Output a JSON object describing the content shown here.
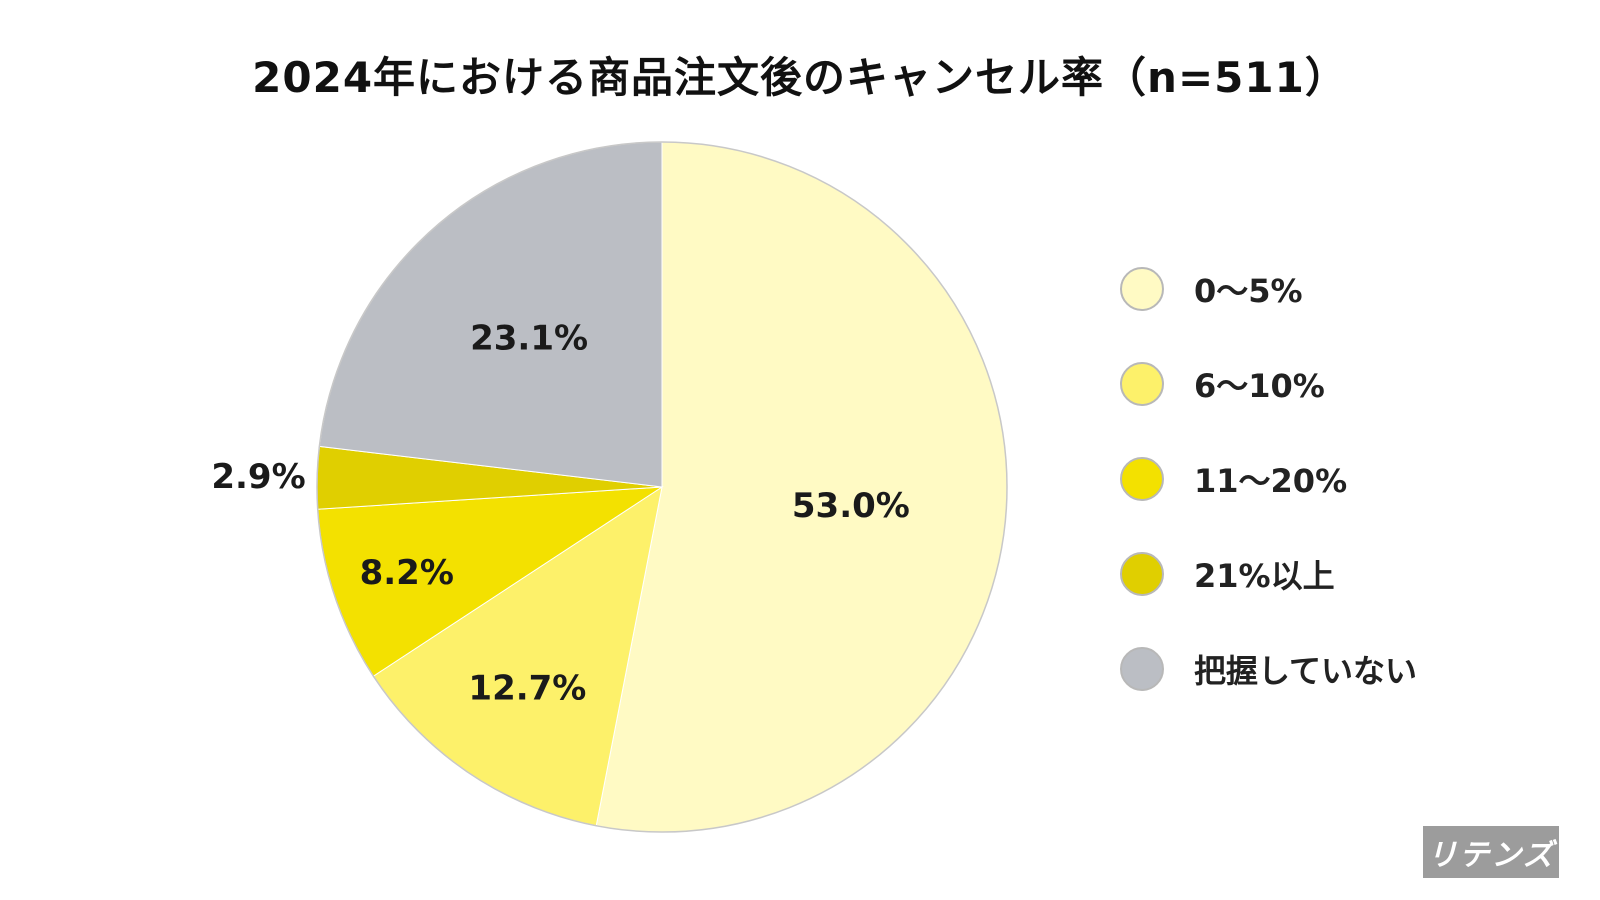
{
  "chart_data": {
    "type": "pie",
    "title": "2024年における商品注文後のキャンセル率（n=511）",
    "categories": [
      "0〜5%",
      "6〜10%",
      "11〜20%",
      "21%以上",
      "把握していない"
    ],
    "values": [
      53.0,
      12.7,
      8.2,
      2.9,
      23.1
    ],
    "value_labels": [
      "53.0%",
      "12.7%",
      "8.2%",
      "2.9%",
      "23.1%"
    ],
    "colors": [
      "#fffac4",
      "#fdf16a",
      "#f3e100",
      "#e0cf00",
      "#bbbec4"
    ],
    "start_angle": "12 o'clock",
    "direction": "clockwise",
    "legend": "right"
  },
  "brand": {
    "logo_text": "リテンズ"
  }
}
